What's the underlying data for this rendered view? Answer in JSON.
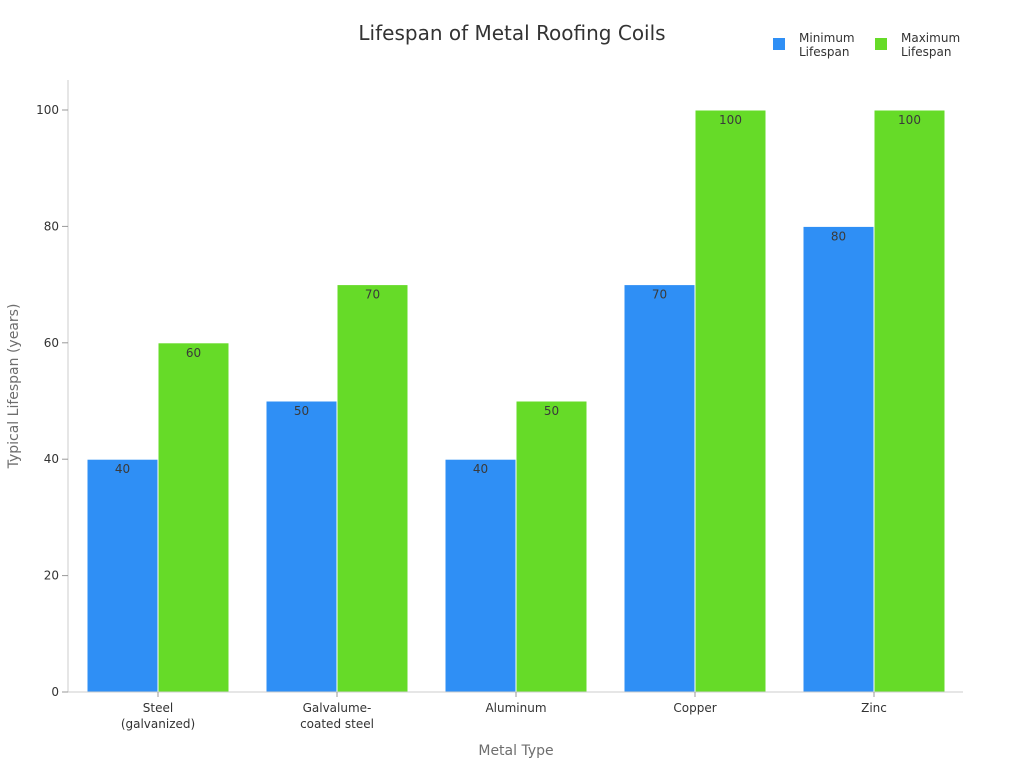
{
  "chart_data": {
    "type": "bar",
    "title": "Lifespan of Metal Roofing Coils",
    "xlabel": "Metal Type",
    "ylabel": "Typical Lifespan (years)",
    "ylim": [
      0,
      105
    ],
    "yticks": [
      0,
      20,
      40,
      60,
      80,
      100
    ],
    "grid": false,
    "legend_position": "top-right",
    "categories": [
      [
        "Steel",
        "(galvanized)"
      ],
      [
        "Galvalume-",
        "coated steel"
      ],
      [
        "Aluminum"
      ],
      [
        "Copper"
      ],
      [
        "Zinc"
      ]
    ],
    "series": [
      {
        "name": [
          "Minimum",
          "Lifespan"
        ],
        "color": "#2f8ff5",
        "values": [
          40,
          50,
          40,
          70,
          80
        ]
      },
      {
        "name": [
          "Maximum",
          "Lifespan"
        ],
        "color": "#66db28",
        "values": [
          60,
          70,
          50,
          100,
          100
        ]
      }
    ]
  }
}
